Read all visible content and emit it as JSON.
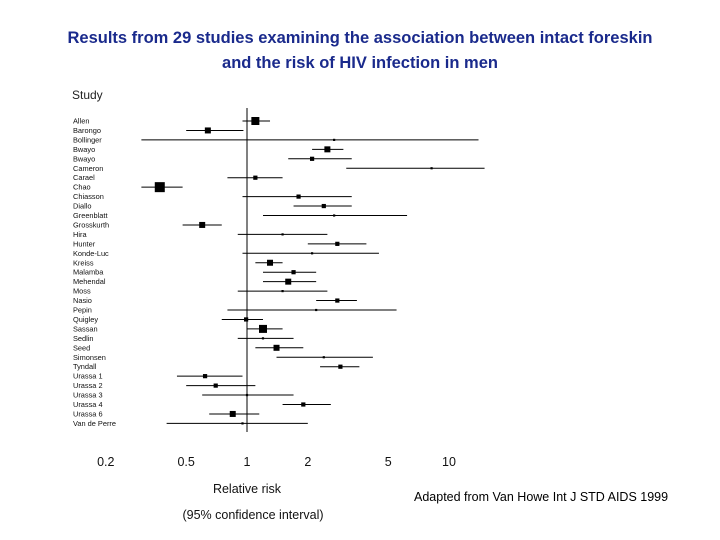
{
  "title_lines": [
    "Results from 29 studies examining the association between intact foreskin",
    "and the risk of HIV infection in men"
  ],
  "attribution": "Adapted from Van Howe Int J STD AIDS 1999",
  "chart_data": {
    "type": "forest",
    "title": "Results from 29 studies examining the association between intact foreskin and the risk of HIV infection in men",
    "ylabel": "Study",
    "xlabel": "Relative risk",
    "xlabel_sub": "(95% confidence interval)",
    "x_scale": "log",
    "xlim": [
      0.2,
      15
    ],
    "x_ticks": [
      0.2,
      0.5,
      1,
      2,
      5,
      10
    ],
    "x_tick_labels": [
      "0.2",
      "0.5",
      "1",
      "2",
      "5",
      "10"
    ],
    "reference_line": 1,
    "studies": [
      {
        "name": "Allen",
        "rr": 1.1,
        "lo": 0.95,
        "hi": 1.3,
        "weight": 3
      },
      {
        "name": "Barongo",
        "rr": 0.64,
        "lo": 0.5,
        "hi": 0.96,
        "weight": 2
      },
      {
        "name": "Bollinger",
        "rr": 2.7,
        "lo": 0.3,
        "hi": 14.0,
        "weight": 0
      },
      {
        "name": "Bwayo",
        "rr": 2.5,
        "lo": 2.1,
        "hi": 3.0,
        "weight": 2
      },
      {
        "name": "Bwayo",
        "rr": 2.1,
        "lo": 1.6,
        "hi": 3.3,
        "weight": 1
      },
      {
        "name": "Cameron",
        "rr": 8.2,
        "lo": 3.1,
        "hi": 15.0,
        "weight": 0
      },
      {
        "name": "Carael",
        "rr": 1.1,
        "lo": 0.8,
        "hi": 1.5,
        "weight": 1
      },
      {
        "name": "Chao",
        "rr": 0.37,
        "lo": 0.3,
        "hi": 0.48,
        "weight": 4
      },
      {
        "name": "Chiasson",
        "rr": 1.8,
        "lo": 0.95,
        "hi": 3.3,
        "weight": 1
      },
      {
        "name": "Diallo",
        "rr": 2.4,
        "lo": 1.7,
        "hi": 3.3,
        "weight": 1
      },
      {
        "name": "Greenblatt",
        "rr": 2.7,
        "lo": 1.2,
        "hi": 6.2,
        "weight": 0
      },
      {
        "name": "Grosskurth",
        "rr": 0.6,
        "lo": 0.48,
        "hi": 0.75,
        "weight": 2
      },
      {
        "name": "Hira",
        "rr": 1.5,
        "lo": 0.9,
        "hi": 2.5,
        "weight": 0
      },
      {
        "name": "Hunter",
        "rr": 2.8,
        "lo": 2.0,
        "hi": 3.9,
        "weight": 1
      },
      {
        "name": "Konde-Luc",
        "rr": 2.1,
        "lo": 0.95,
        "hi": 4.5,
        "weight": 0
      },
      {
        "name": "Kreiss",
        "rr": 1.3,
        "lo": 1.1,
        "hi": 1.5,
        "weight": 2
      },
      {
        "name": "Malamba",
        "rr": 1.7,
        "lo": 1.2,
        "hi": 2.2,
        "weight": 1
      },
      {
        "name": "Mehendal",
        "rr": 1.6,
        "lo": 1.2,
        "hi": 2.2,
        "weight": 2
      },
      {
        "name": "Moss",
        "rr": 1.5,
        "lo": 0.9,
        "hi": 2.5,
        "weight": 0
      },
      {
        "name": "Nasio",
        "rr": 2.8,
        "lo": 2.2,
        "hi": 3.5,
        "weight": 1
      },
      {
        "name": "Pepin",
        "rr": 2.2,
        "lo": 0.8,
        "hi": 5.5,
        "weight": 0
      },
      {
        "name": "Quigley",
        "rr": 0.99,
        "lo": 0.75,
        "hi": 1.2,
        "weight": 1
      },
      {
        "name": "Sassan",
        "rr": 1.2,
        "lo": 1.0,
        "hi": 1.5,
        "weight": 3
      },
      {
        "name": "Sedlin",
        "rr": 1.2,
        "lo": 0.9,
        "hi": 1.7,
        "weight": 0
      },
      {
        "name": "Seed",
        "rr": 1.4,
        "lo": 1.1,
        "hi": 1.9,
        "weight": 2
      },
      {
        "name": "Simonsen",
        "rr": 2.4,
        "lo": 1.4,
        "hi": 4.2,
        "weight": 0
      },
      {
        "name": "Tyndall",
        "rr": 2.9,
        "lo": 2.3,
        "hi": 3.6,
        "weight": 1
      },
      {
        "name": "Urassa 1",
        "rr": 0.62,
        "lo": 0.45,
        "hi": 0.95,
        "weight": 1
      },
      {
        "name": "Urassa 2",
        "rr": 0.7,
        "lo": 0.5,
        "hi": 1.1,
        "weight": 1
      },
      {
        "name": "Urassa 3",
        "rr": 1.0,
        "lo": 0.6,
        "hi": 1.7,
        "weight": 0
      },
      {
        "name": "Urassa 4",
        "rr": 1.9,
        "lo": 1.5,
        "hi": 2.6,
        "weight": 1
      },
      {
        "name": "Urassa 6",
        "rr": 0.85,
        "lo": 0.65,
        "hi": 1.15,
        "weight": 2
      },
      {
        "name": "Van de Perre",
        "rr": 0.95,
        "lo": 0.4,
        "hi": 2.0,
        "weight": 0
      }
    ]
  }
}
